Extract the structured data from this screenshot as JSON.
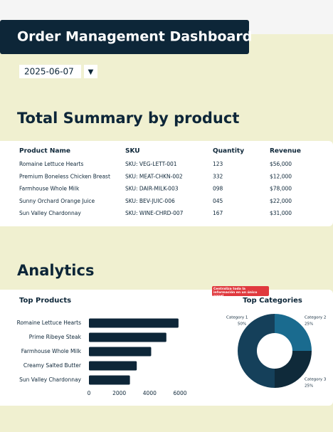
{
  "header": {
    "title": "Order Management Dashboard"
  },
  "date_picker": {
    "value": "2025-06-07",
    "button": "▼"
  },
  "summary": {
    "title": "Total Summary by product",
    "columns": [
      "Product Name",
      "SKU",
      "Quantity",
      "Revenue"
    ],
    "rows": [
      [
        "Romaine Lettuce Hearts",
        "SKU: VEG-LETT-001",
        "123",
        "$56,000"
      ],
      [
        "Premium Boneless Chicken Breast",
        "SKU: MEAT-CHKN-002",
        "332",
        "$12,000"
      ],
      [
        "Farmhouse Whole Milk",
        "SKU: DAIR-MILK-003",
        "098",
        "$78,000"
      ],
      [
        "Sunny Orchard Orange Juice",
        "SKU: BEV-JUIC-006",
        "045",
        "$22,000"
      ],
      [
        "Sun Valley Chardonnay",
        "SKU: WINE-CHRD-007",
        "167",
        "$31,000"
      ]
    ]
  },
  "analytics": {
    "title": "Analytics",
    "tooltip": "Centraliza toda la información en un único panel"
  },
  "chart_data": [
    {
      "type": "bar",
      "orientation": "horizontal",
      "title": "Top Products",
      "categories": [
        "Romaine Lettuce Hearts",
        "Prime Ribeye Steak",
        "Farmhouse Whole Milk",
        "Creamy Salted Butter",
        "Sun Valley Chardonnay"
      ],
      "values": [
        5900,
        5100,
        4100,
        3150,
        2700
      ],
      "color": "#0d2638",
      "xlim": [
        0,
        6000
      ],
      "xticks": [
        0,
        2000,
        4000,
        6000
      ]
    },
    {
      "type": "pie",
      "donut": true,
      "title": "Top Categories",
      "categories": [
        "Category 1",
        "Category 2",
        "Category 3"
      ],
      "values": [
        50,
        25,
        25
      ],
      "value_labels": [
        "50%",
        "25%",
        "25%"
      ],
      "colors": [
        "#15405a",
        "#1a6b8f",
        "#0f2a3a"
      ]
    }
  ]
}
